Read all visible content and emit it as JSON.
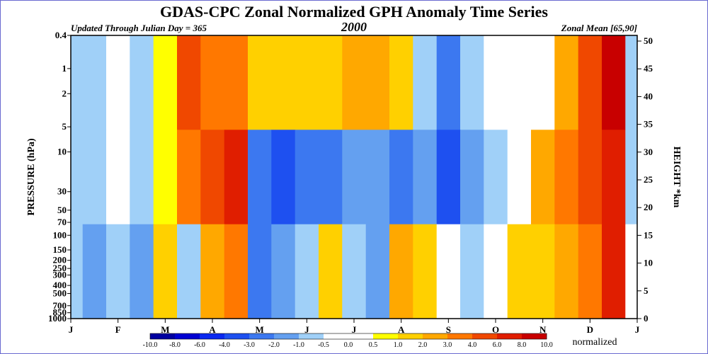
{
  "chart_data": {
    "type": "heatmap",
    "title": "GDAS-CPC Zonal Normalized GPH Anomaly Time Series",
    "subtitle_left": "Updated Through Julian Day = 365",
    "subtitle_center": "2000",
    "subtitle_right": "Zonal Mean [65,90]",
    "ylabel_left": "PRESSURE (hPa)",
    "ylabel_right": "HEIGHT *km",
    "x_ticks": [
      "J",
      "F",
      "M",
      "A",
      "M",
      "J",
      "J",
      "A",
      "S",
      "O",
      "N",
      "D",
      "J"
    ],
    "y_left_ticks": [
      "0.4",
      "1",
      "2",
      "5",
      "10",
      "30",
      "50",
      "70",
      "100",
      "150",
      "200",
      "250",
      "300",
      "400",
      "500",
      "700",
      "850",
      "1000"
    ],
    "y_right_ticks": [
      "50",
      "45",
      "40",
      "35",
      "30",
      "25",
      "20",
      "15",
      "10",
      "5",
      "0"
    ],
    "colorbar": {
      "levels": [
        "-10.0",
        "-8.0",
        "-6.0",
        "-4.0",
        "-3.0",
        "-2.0",
        "-1.0",
        "-0.5",
        "0.0",
        "0.5",
        "1.0",
        "2.0",
        "3.0",
        "4.0",
        "6.0",
        "8.0",
        "10.0"
      ],
      "colors": [
        "#0000a0",
        "#0000d2",
        "#0a28f0",
        "#1e50f0",
        "#3c78f0",
        "#64a0f0",
        "#a0d0f8",
        "#ffffff",
        "#ffffff",
        "#ffff00",
        "#ffd000",
        "#ffa800",
        "#ff7800",
        "#f04800",
        "#e01e00",
        "#c80000"
      ],
      "unit": "normalized"
    },
    "field": {
      "x_months": [
        0,
        0.5,
        1,
        1.5,
        2,
        2.5,
        3,
        3.5,
        4,
        4.5,
        5,
        5.5,
        6,
        6.5,
        7,
        7.5,
        8,
        8.5,
        9,
        9.5,
        10,
        10.5,
        11,
        11.5,
        12
      ],
      "rows": [
        {
          "level": "upper",
          "values": [
            -1,
            -1,
            0,
            -1,
            0.5,
            4,
            3,
            3,
            1,
            1,
            1,
            1,
            2,
            2,
            1,
            -1,
            -3,
            -1,
            0,
            0,
            0,
            2,
            4,
            8,
            -1
          ]
        },
        {
          "level": "middle",
          "values": [
            -1,
            -1,
            0,
            -1,
            0.5,
            3,
            5,
            6,
            -3,
            -4,
            -3,
            -3,
            -2,
            -2,
            -3,
            -2,
            -4,
            -2,
            -1,
            0,
            2,
            3,
            4,
            6,
            -1
          ]
        },
        {
          "level": "lower",
          "values": [
            -1,
            -2,
            -1,
            -2,
            1,
            -1,
            2,
            3,
            -3,
            -2,
            -1,
            1,
            -1,
            -2,
            2,
            1,
            0,
            -1,
            0,
            1,
            1,
            2,
            3,
            6,
            0
          ]
        }
      ]
    }
  }
}
